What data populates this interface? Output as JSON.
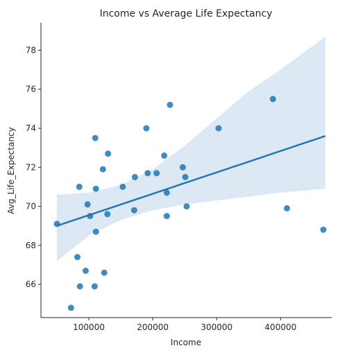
{
  "chart_data": {
    "type": "scatter",
    "title": "Income vs Average Life Expectancy",
    "xlabel": "Income",
    "ylabel": "Avg_Life_Expectancy",
    "xlim": [
      25000,
      480000
    ],
    "ylim": [
      64.3,
      79.4
    ],
    "x_ticks": [
      100000,
      200000,
      300000,
      400000
    ],
    "x_tick_labels": [
      "100000",
      "200000",
      "300000",
      "400000"
    ],
    "y_ticks": [
      66,
      68,
      70,
      72,
      74,
      76,
      78
    ],
    "y_tick_labels": [
      "66",
      "68",
      "70",
      "72",
      "74",
      "76",
      "78"
    ],
    "grid": false,
    "point_color": "#1f77b4",
    "line_color": "#1f77b4",
    "band_color": "#dce8f3",
    "points": [
      {
        "x": 50000,
        "y": 69.1
      },
      {
        "x": 72000,
        "y": 64.8
      },
      {
        "x": 82000,
        "y": 67.4
      },
      {
        "x": 85000,
        "y": 71.0
      },
      {
        "x": 86000,
        "y": 65.9
      },
      {
        "x": 95000,
        "y": 66.7
      },
      {
        "x": 98000,
        "y": 70.1
      },
      {
        "x": 102000,
        "y": 69.5
      },
      {
        "x": 109000,
        "y": 65.9
      },
      {
        "x": 110000,
        "y": 73.5
      },
      {
        "x": 111000,
        "y": 70.9
      },
      {
        "x": 111000,
        "y": 68.7
      },
      {
        "x": 122000,
        "y": 71.9
      },
      {
        "x": 124000,
        "y": 66.6
      },
      {
        "x": 129000,
        "y": 69.6
      },
      {
        "x": 130000,
        "y": 72.7
      },
      {
        "x": 153000,
        "y": 71.0
      },
      {
        "x": 171000,
        "y": 69.8
      },
      {
        "x": 172000,
        "y": 71.5
      },
      {
        "x": 190000,
        "y": 74.0
      },
      {
        "x": 192000,
        "y": 71.7
      },
      {
        "x": 206000,
        "y": 71.7
      },
      {
        "x": 218000,
        "y": 72.6
      },
      {
        "x": 222000,
        "y": 70.7
      },
      {
        "x": 222000,
        "y": 69.5
      },
      {
        "x": 227000,
        "y": 75.2
      },
      {
        "x": 247000,
        "y": 72.0
      },
      {
        "x": 251000,
        "y": 71.5
      },
      {
        "x": 253000,
        "y": 70.0
      },
      {
        "x": 303000,
        "y": 74.0
      },
      {
        "x": 388000,
        "y": 75.5
      },
      {
        "x": 410000,
        "y": 69.9
      },
      {
        "x": 467000,
        "y": 68.8
      }
    ],
    "regression": {
      "x": [
        50000,
        470000
      ],
      "y": [
        69.0,
        73.6
      ]
    },
    "confidence_band": {
      "x": [
        50000,
        100000,
        150000,
        200000,
        250000,
        300000,
        350000,
        400000,
        470000
      ],
      "upper": [
        70.6,
        70.7,
        71.1,
        71.9,
        73.1,
        74.5,
        75.9,
        77.0,
        78.7
      ],
      "lower": [
        67.2,
        68.5,
        69.3,
        69.8,
        70.1,
        70.3,
        70.5,
        70.7,
        70.9
      ]
    }
  }
}
